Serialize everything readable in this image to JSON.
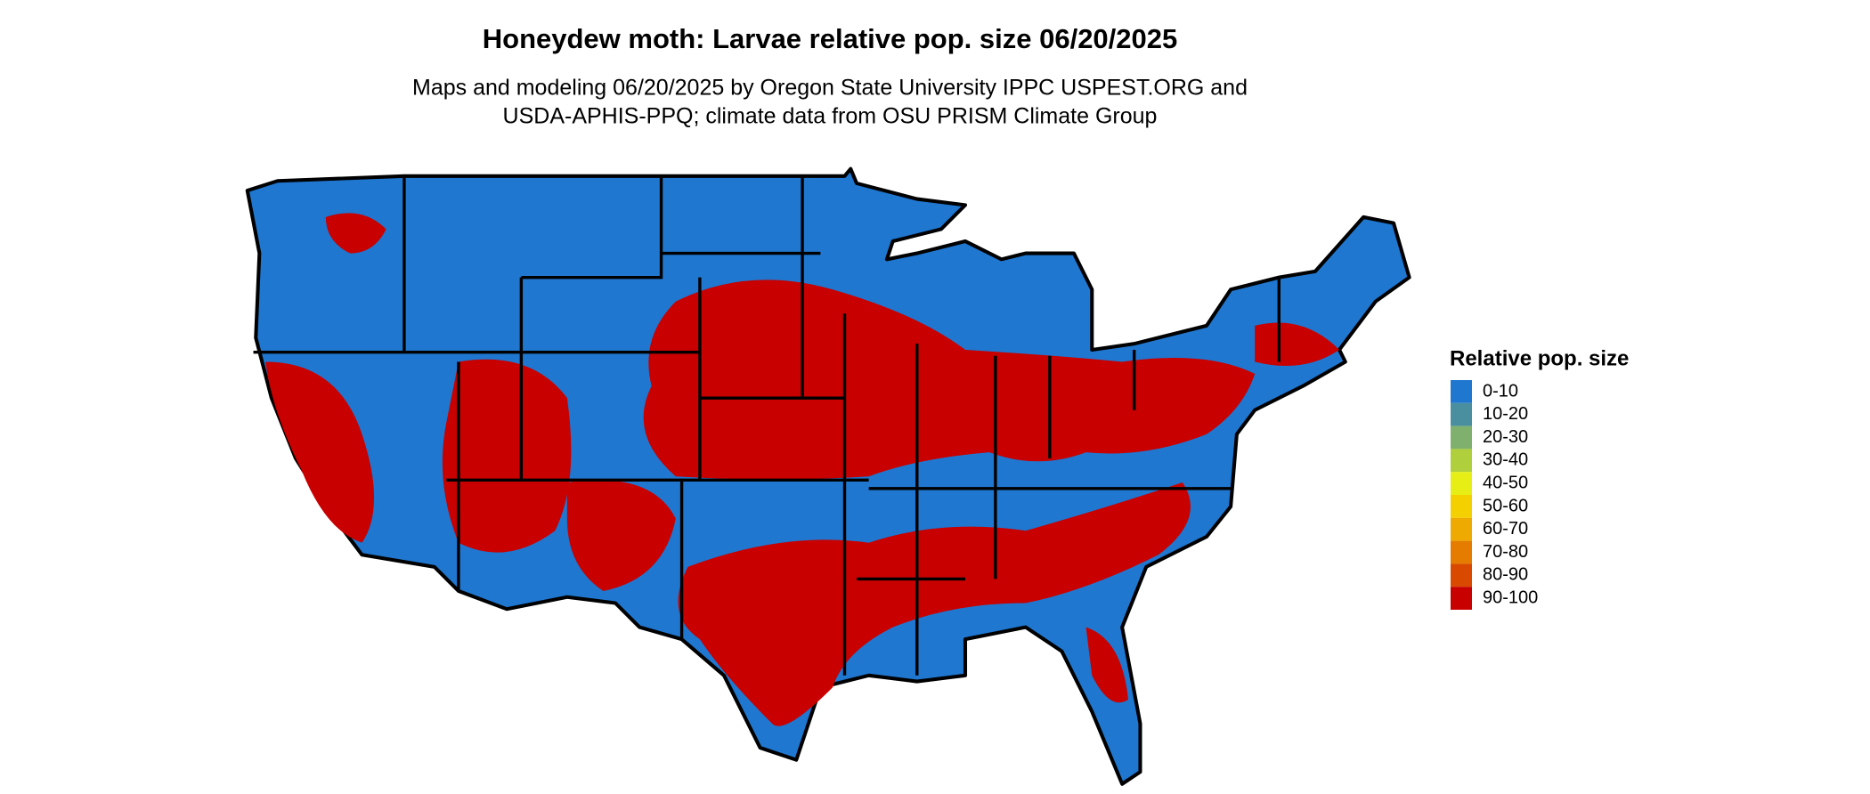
{
  "title": "Honeydew moth: Larvae relative pop. size 06/20/2025",
  "subtitle": [
    "Maps and modeling 06/20/2025 by Oregon State University IPPC USPEST.ORG and",
    "USDA-APHIS-PPQ; climate data from OSU PRISM Climate Group"
  ],
  "legend": {
    "title": "Relative pop. size",
    "items": [
      {
        "label": "0-10",
        "color": "#1f77d0"
      },
      {
        "label": "10-20",
        "color": "#4a8fa0"
      },
      {
        "label": "20-30",
        "color": "#7fb06e"
      },
      {
        "label": "30-40",
        "color": "#b0cf3c"
      },
      {
        "label": "40-50",
        "color": "#e6ee16"
      },
      {
        "label": "50-60",
        "color": "#f5d000"
      },
      {
        "label": "60-70",
        "color": "#eeaa00"
      },
      {
        "label": "70-80",
        "color": "#e57c00"
      },
      {
        "label": "80-90",
        "color": "#d94a00"
      },
      {
        "label": "90-100",
        "color": "#c80000"
      }
    ]
  }
}
